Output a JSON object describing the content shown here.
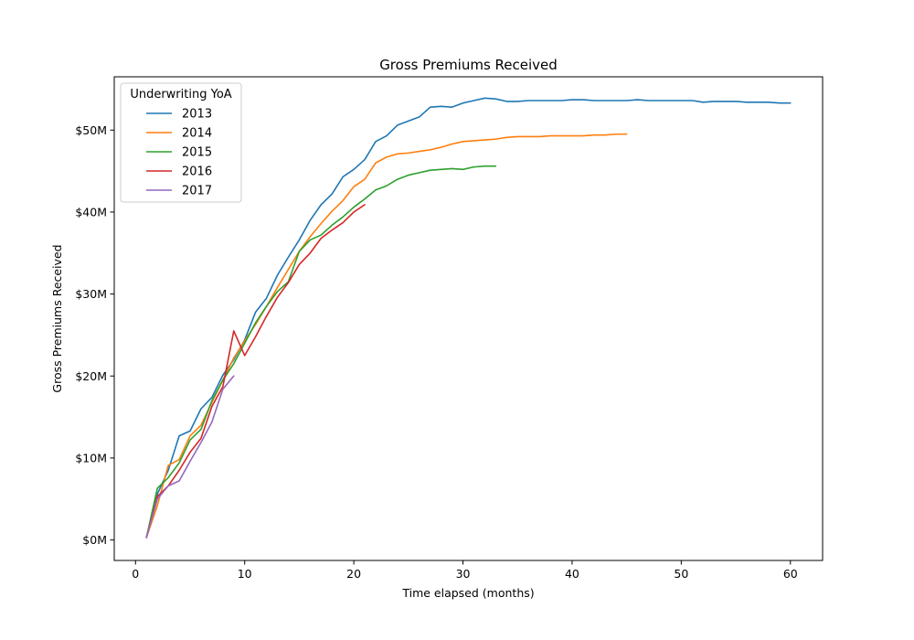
{
  "chart_data": {
    "type": "line",
    "title": "Gross Premiums Received",
    "xlabel": "Time elapsed (months)",
    "ylabel": "Gross Premiums Received",
    "xlim": [
      -1.95,
      62.95
    ],
    "ylim": [
      -2.5,
      56.5
    ],
    "x_ticks": [
      0,
      10,
      20,
      30,
      40,
      50,
      60
    ],
    "x_tick_labels": [
      "0",
      "10",
      "20",
      "30",
      "40",
      "50",
      "60"
    ],
    "y_ticks": [
      0,
      10,
      20,
      30,
      40,
      50
    ],
    "y_tick_labels": [
      "$0M",
      "$10M",
      "$20M",
      "$30M",
      "$40M",
      "$50M"
    ],
    "y_units": "$M",
    "grid": false,
    "legend": {
      "title": "Underwriting YoA",
      "placement": "top-left"
    },
    "series": [
      {
        "name": "2013",
        "color": "#1f77b4",
        "x": [
          1,
          2,
          3,
          4,
          5,
          6,
          7,
          8,
          9,
          10,
          11,
          12,
          13,
          14,
          15,
          16,
          17,
          18,
          19,
          20,
          21,
          22,
          23,
          24,
          25,
          26,
          27,
          28,
          29,
          30,
          31,
          32,
          33,
          34,
          35,
          36,
          37,
          38,
          39,
          40,
          41,
          42,
          43,
          44,
          45,
          46,
          47,
          48,
          49,
          50,
          51,
          52,
          53,
          54,
          55,
          56,
          57,
          58,
          59,
          60
        ],
        "values": [
          0.3,
          5.6,
          8.5,
          12.7,
          13.3,
          16.0,
          17.4,
          20.1,
          22.0,
          24.4,
          27.8,
          29.5,
          32.3,
          34.5,
          36.6,
          39.0,
          40.9,
          42.2,
          44.3,
          45.2,
          46.4,
          48.6,
          49.3,
          50.6,
          51.1,
          51.6,
          52.8,
          52.9,
          52.8,
          53.3,
          53.6,
          53.9,
          53.8,
          53.5,
          53.5,
          53.6,
          53.6,
          53.6,
          53.6,
          53.7,
          53.7,
          53.6,
          53.6,
          53.6,
          53.6,
          53.7,
          53.6,
          53.6,
          53.6,
          53.6,
          53.6,
          53.4,
          53.5,
          53.5,
          53.5,
          53.4,
          53.4,
          53.4,
          53.3,
          53.3
        ]
      },
      {
        "name": "2014",
        "color": "#ff7f0e",
        "x": [
          1,
          2,
          3,
          4,
          5,
          6,
          7,
          8,
          9,
          10,
          11,
          12,
          13,
          14,
          15,
          16,
          17,
          18,
          19,
          20,
          21,
          22,
          23,
          24,
          25,
          26,
          27,
          28,
          29,
          30,
          31,
          32,
          33,
          34,
          35,
          36,
          37,
          38,
          39,
          40,
          41,
          42,
          43,
          44,
          45
        ],
        "values": [
          0.3,
          4.2,
          9.1,
          9.8,
          12.7,
          14.0,
          16.8,
          19.5,
          22.2,
          24.3,
          26.3,
          28.5,
          30.8,
          33.0,
          35.2,
          37.0,
          38.6,
          40.1,
          41.4,
          43.1,
          44.0,
          46.0,
          46.7,
          47.1,
          47.2,
          47.4,
          47.6,
          47.9,
          48.3,
          48.6,
          48.7,
          48.8,
          48.9,
          49.1,
          49.2,
          49.2,
          49.2,
          49.3,
          49.3,
          49.3,
          49.3,
          49.4,
          49.4,
          49.5,
          49.5
        ]
      },
      {
        "name": "2015",
        "color": "#2ca02c",
        "x": [
          1,
          2,
          3,
          4,
          5,
          6,
          7,
          8,
          9,
          10,
          11,
          12,
          13,
          14,
          15,
          16,
          17,
          18,
          19,
          20,
          21,
          22,
          23,
          24,
          25,
          26,
          27,
          28,
          29,
          30,
          31,
          32,
          33
        ],
        "values": [
          0.3,
          6.3,
          7.6,
          9.4,
          12.2,
          13.5,
          17.0,
          19.5,
          21.5,
          24.0,
          26.5,
          28.5,
          30.3,
          31.5,
          35.2,
          36.6,
          37.2,
          38.4,
          39.4,
          40.6,
          41.6,
          42.7,
          43.2,
          44.0,
          44.5,
          44.8,
          45.1,
          45.2,
          45.3,
          45.2,
          45.5,
          45.6,
          45.6
        ]
      },
      {
        "name": "2016",
        "color": "#d62728",
        "x": [
          1,
          2,
          3,
          4,
          5,
          6,
          7,
          8,
          9,
          10,
          11,
          12,
          13,
          14,
          15,
          16,
          17,
          18,
          19,
          20,
          21
        ],
        "values": [
          0.3,
          5.3,
          6.6,
          8.5,
          10.7,
          12.4,
          16.3,
          18.7,
          25.5,
          22.5,
          24.8,
          27.3,
          29.6,
          31.4,
          33.6,
          35.0,
          36.8,
          37.8,
          38.7,
          40.0,
          40.9
        ]
      },
      {
        "name": "2017",
        "color": "#9467bd",
        "x": [
          1,
          2,
          3,
          4,
          5,
          6,
          7,
          8,
          9
        ],
        "values": [
          0.3,
          5.0,
          6.6,
          7.2,
          9.6,
          11.9,
          14.4,
          18.4,
          20.0
        ]
      }
    ]
  }
}
